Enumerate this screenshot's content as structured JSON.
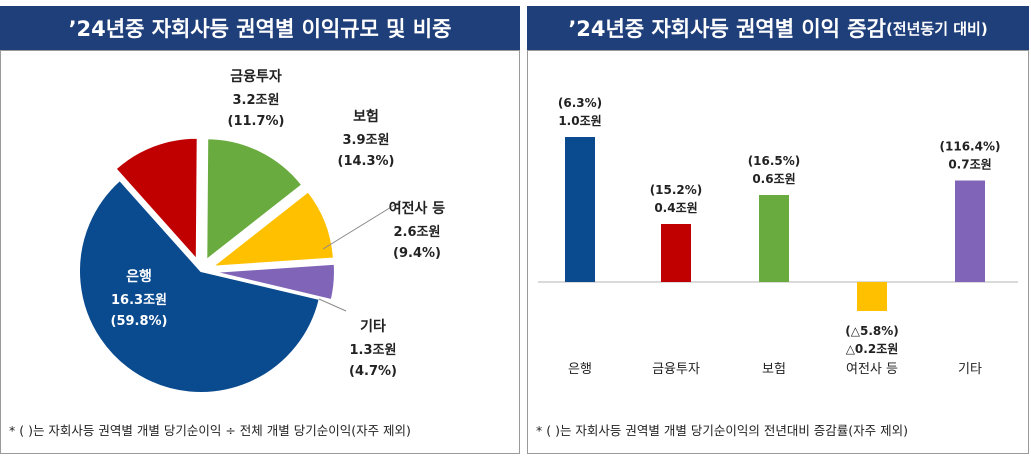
{
  "chart_data": [
    {
      "type": "pie",
      "title": "’24년중 자회사등 권역별 이익규모 및 비중",
      "slices": [
        {
          "name": "은행",
          "value_label": "16.3조원",
          "pct_label": "(59.8%)",
          "value": 16.3,
          "pct": 59.8,
          "color": "#0a4a8f"
        },
        {
          "name": "금융투자",
          "value_label": "3.2조원",
          "pct_label": "(11.7%)",
          "value": 3.2,
          "pct": 11.7,
          "color": "#c00000"
        },
        {
          "name": "보험",
          "value_label": "3.9조원",
          "pct_label": "(14.3%)",
          "value": 3.9,
          "pct": 14.3,
          "color": "#6aab3f"
        },
        {
          "name": "여전사 등",
          "value_label": "2.6조원",
          "pct_label": "(9.4%)",
          "value": 2.6,
          "pct": 9.4,
          "color": "#ffc000"
        },
        {
          "name": "기타",
          "value_label": "1.3조원",
          "pct_label": "(4.7%)",
          "value": 1.3,
          "pct": 4.7,
          "color": "#8064b8"
        }
      ],
      "footnote": "* (  )는 자회사등 권역별 개별 당기순이익 ÷ 전체 개별 당기순이익(자주 제외)"
    },
    {
      "type": "bar",
      "title_main": "’24년중 자회사등 권역별 이익 증감",
      "title_sub": "(전년동기 대비)",
      "categories": [
        "은행",
        "금융투자",
        "보험",
        "여전사 등",
        "기타"
      ],
      "values": [
        1.0,
        0.4,
        0.6,
        -0.2,
        0.7
      ],
      "value_labels": [
        "1.0조원",
        "0.4조원",
        "0.6조원",
        "△0.2조원",
        "0.7조원"
      ],
      "pct_labels": [
        "(6.3%)",
        "(15.2%)",
        "(16.5%)",
        "(△5.8%)",
        "(116.4%)"
      ],
      "colors": [
        "#0a4a8f",
        "#c00000",
        "#6aab3f",
        "#ffc000",
        "#8064b8"
      ],
      "ylim": [
        -0.3,
        1.2
      ],
      "footnote": "* (  )는 자회사등 권역별 개별 당기순이익의 전년대비 증감률(자주 제외)"
    }
  ]
}
